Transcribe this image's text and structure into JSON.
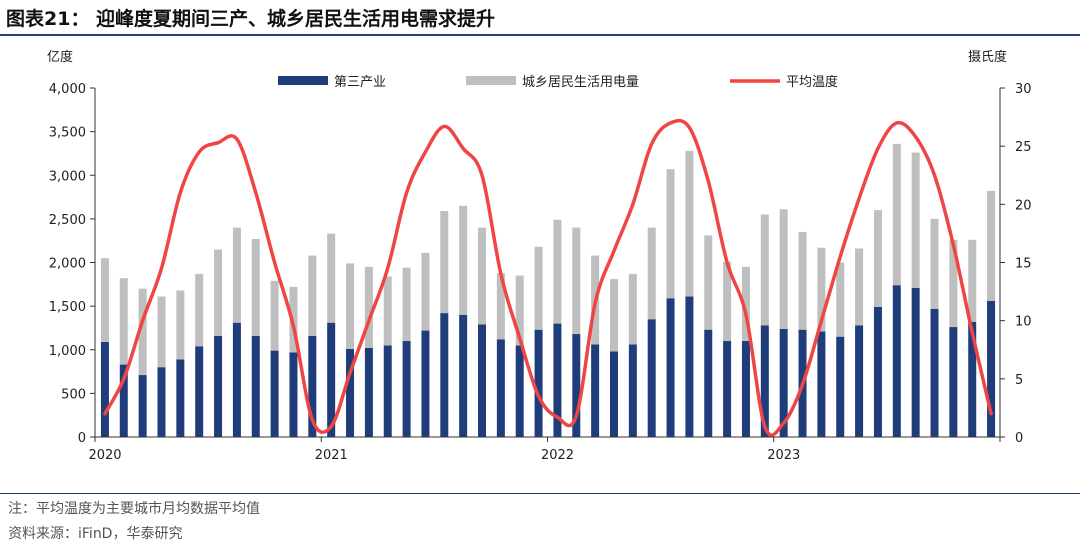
{
  "title": "图表21： 迎峰度夏期间三产、城乡居民生活用电需求提升",
  "notes": {
    "note": "注：平均温度为主要城市月均数据平均值",
    "source": "资料来源：iFinD，华泰研究"
  },
  "chart_data": {
    "type": "bar",
    "stacked": true,
    "categories": [
      "2020-01",
      "2020-02",
      "2020-03",
      "2020-04",
      "2020-05",
      "2020-06",
      "2020-07",
      "2020-08",
      "2020-09",
      "2020-10",
      "2020-11",
      "2020-12",
      "2021-01",
      "2021-02",
      "2021-03",
      "2021-04",
      "2021-05",
      "2021-06",
      "2021-07",
      "2021-08",
      "2021-09",
      "2021-10",
      "2021-11",
      "2021-12",
      "2022-01",
      "2022-02",
      "2022-03",
      "2022-04",
      "2022-05",
      "2022-06",
      "2022-07",
      "2022-08",
      "2022-09",
      "2022-10",
      "2022-11",
      "2022-12",
      "2023-01",
      "2023-02",
      "2023-03",
      "2023-04",
      "2023-05",
      "2023-06",
      "2023-07",
      "2023-08",
      "2023-09",
      "2023-10",
      "2023-11",
      "2023-12"
    ],
    "x_tick_labels": [
      "2020",
      "2021",
      "2022",
      "2023"
    ],
    "series": [
      {
        "name": "第三产业",
        "kind": "bar",
        "axis": "left",
        "color": "#1f3d7a",
        "values": [
          1090,
          830,
          710,
          800,
          890,
          1040,
          1160,
          1310,
          1160,
          990,
          970,
          1160,
          1310,
          1010,
          1020,
          1050,
          1100,
          1220,
          1420,
          1400,
          1290,
          1120,
          1050,
          1230,
          1300,
          1180,
          1060,
          980,
          1060,
          1350,
          1590,
          1610,
          1230,
          1100,
          1100,
          1280,
          1240,
          1230,
          1210,
          1150,
          1280,
          1490,
          1740,
          1710,
          1470,
          1260,
          1320,
          1560
        ]
      },
      {
        "name": "城乡居民生活用电量",
        "kind": "bar",
        "axis": "left",
        "color": "#bfbfbf",
        "values": [
          960,
          990,
          990,
          810,
          790,
          830,
          990,
          1090,
          1110,
          800,
          750,
          920,
          1020,
          980,
          930,
          790,
          840,
          890,
          1170,
          1250,
          1110,
          760,
          800,
          950,
          1190,
          1220,
          1020,
          830,
          810,
          1050,
          1480,
          1670,
          1080,
          910,
          850,
          1270,
          1370,
          1120,
          960,
          850,
          880,
          1110,
          1620,
          1550,
          1030,
          1000,
          940,
          1260
        ]
      },
      {
        "name": "平均温度",
        "kind": "line",
        "axis": "right",
        "color": "#f04545",
        "values": [
          2.0,
          5.0,
          10.0,
          14.5,
          21.0,
          24.5,
          25.3,
          25.6,
          21.0,
          15.0,
          9.5,
          1.5,
          0.9,
          5.5,
          10.0,
          14.5,
          21.0,
          24.5,
          26.7,
          24.8,
          22.5,
          14.0,
          8.5,
          3.5,
          1.7,
          1.8,
          11.5,
          16.0,
          20.0,
          25.2,
          27.0,
          26.6,
          22.0,
          15.0,
          10.5,
          0.9,
          1.2,
          4.5,
          10.0,
          15.5,
          20.5,
          24.8,
          27.0,
          25.8,
          22.5,
          16.5,
          9.0,
          2.0
        ]
      }
    ],
    "y_left": {
      "label": "亿度",
      "min": 0,
      "max": 4000,
      "ticks": [
        0,
        500,
        1000,
        1500,
        2000,
        2500,
        3000,
        3500,
        4000
      ],
      "tick_labels": [
        "0",
        "500",
        "1,000",
        "1,500",
        "2,000",
        "2,500",
        "3,000",
        "3,500",
        "4,000"
      ]
    },
    "y_right": {
      "label": "摄氏度",
      "min": 0,
      "max": 30,
      "ticks": [
        0,
        5,
        10,
        15,
        20,
        25,
        30
      ],
      "tick_labels": [
        "0",
        "5",
        "10",
        "15",
        "20",
        "25",
        "30"
      ]
    },
    "legend_position": "top-center",
    "grid": false
  }
}
